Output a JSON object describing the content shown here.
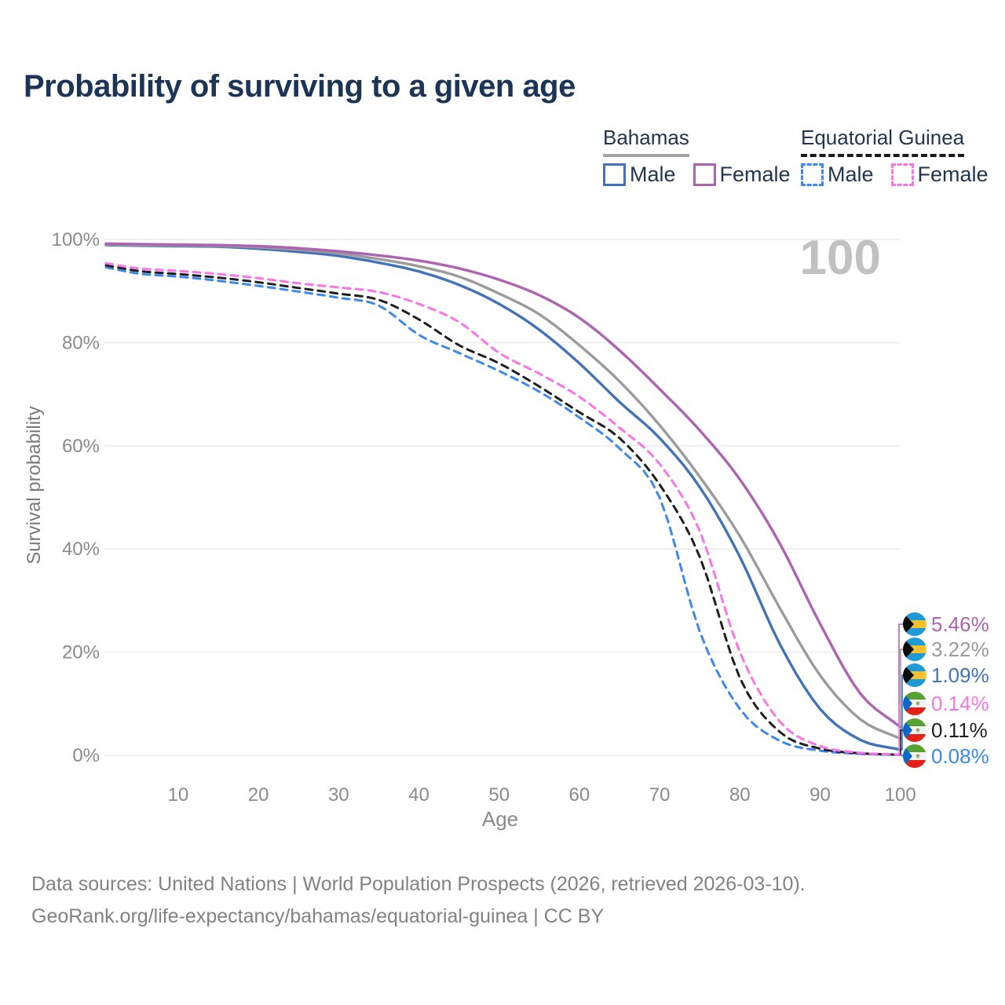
{
  "title": "Probability of surviving to a given age",
  "watermark_age": "100",
  "legend": {
    "bahamas": {
      "title": "Bahamas",
      "male": "Male",
      "female": "Female"
    },
    "equatorial_guinea": {
      "title": "Equatorial Guinea",
      "male": "Male",
      "female": "Female"
    }
  },
  "colors": {
    "title_text": "#1c3557",
    "legend_text": "#22354f",
    "bahamas_female": "#ad64b0",
    "bahamas_both": "#9b9b9b",
    "bahamas_male": "#4273b8",
    "eq_guinea_female": "#fa74e8",
    "eq_guinea_both": "#1f1f1f",
    "eq_guinea_male": "#3d87f0",
    "gridline": "#ececec",
    "tick_text": "#8a8a8a",
    "watermark": "#c1c1c1"
  },
  "footer": {
    "line1": "Data sources: United Nations | World Population Prospects (2026, retrieved 2026-03-10).",
    "line2": "GeoRank.org/life-expectancy/bahamas/equatorial-guinea | CC BY"
  },
  "chart_data": {
    "type": "line",
    "title": "Probability of surviving to a given age",
    "xlabel": "Age",
    "ylabel": "Survival probability",
    "xlim": [
      1,
      100
    ],
    "ylim": [
      0,
      100
    ],
    "grid": "horizontal-only",
    "x_ticks": [
      10,
      20,
      30,
      40,
      50,
      60,
      70,
      80,
      90,
      100
    ],
    "x_tick_labels": [
      "10",
      "20",
      "30",
      "40",
      "50",
      "60",
      "70",
      "80",
      "90",
      "100"
    ],
    "y_ticks": [
      0,
      20,
      40,
      60,
      80,
      100
    ],
    "y_tick_labels": [
      "0%",
      "20%",
      "40%",
      "60%",
      "80%",
      "100%"
    ],
    "x": [
      1,
      5,
      10,
      15,
      20,
      25,
      30,
      35,
      40,
      45,
      50,
      55,
      60,
      65,
      70,
      75,
      80,
      85,
      90,
      95,
      100
    ],
    "series": [
      {
        "name": "Bahamas Male",
        "country": "Bahamas",
        "sex": "Male",
        "style": "solid",
        "color": "#4273b8",
        "values": [
          98.9,
          98.8,
          98.7,
          98.6,
          98.2,
          97.6,
          96.8,
          95.5,
          93.8,
          91.2,
          87.5,
          82.5,
          76.0,
          68.5,
          61.5,
          52.0,
          38.5,
          21.5,
          9.0,
          3.0,
          1.09
        ]
      },
      {
        "name": "Bahamas Both sexes",
        "country": "Bahamas",
        "sex": "Both",
        "style": "solid",
        "color": "#9b9b9b",
        "values": [
          99.0,
          98.9,
          98.85,
          98.75,
          98.5,
          98.0,
          97.3,
          96.2,
          94.8,
          92.8,
          89.5,
          85.5,
          79.5,
          72.5,
          64.0,
          54.0,
          42.5,
          28.5,
          15.5,
          7.0,
          3.22
        ]
      },
      {
        "name": "Bahamas Female",
        "country": "Bahamas",
        "sex": "Female",
        "style": "solid",
        "color": "#ad64b0",
        "values": [
          99.2,
          99.1,
          99.0,
          98.9,
          98.7,
          98.3,
          97.7,
          96.9,
          95.9,
          94.4,
          92.2,
          89.2,
          84.8,
          78.5,
          71.0,
          63.0,
          53.5,
          41.0,
          25.5,
          12.0,
          5.46
        ]
      },
      {
        "name": "Equatorial Guinea Male",
        "country": "Equatorial Guinea",
        "sex": "Male",
        "style": "dashed",
        "color": "#3d87f0",
        "values": [
          94.6,
          93.4,
          92.8,
          92.0,
          91.0,
          89.9,
          88.7,
          87.2,
          81.5,
          78.0,
          74.5,
          70.5,
          65.5,
          59.5,
          50.0,
          24.0,
          9.0,
          2.8,
          0.9,
          0.3,
          0.08
        ]
      },
      {
        "name": "Equatorial Guinea Both sexes",
        "country": "Equatorial Guinea",
        "sex": "Both",
        "style": "dashed",
        "color": "#1f1f1f",
        "values": [
          95.0,
          93.9,
          93.3,
          92.6,
          91.7,
          90.6,
          89.5,
          88.3,
          84.5,
          79.5,
          76.0,
          71.5,
          66.5,
          61.5,
          52.5,
          38.5,
          15.0,
          4.5,
          1.3,
          0.4,
          0.11
        ]
      },
      {
        "name": "Equatorial Guinea Female",
        "country": "Equatorial Guinea",
        "sex": "Female",
        "style": "dashed",
        "color": "#fa74e8",
        "values": [
          95.4,
          94.4,
          93.9,
          93.3,
          92.5,
          91.5,
          90.7,
          89.8,
          87.5,
          84.0,
          78.0,
          74.0,
          69.5,
          63.5,
          56.5,
          43.5,
          20.0,
          6.5,
          1.8,
          0.5,
          0.14
        ]
      }
    ],
    "end_labels": [
      {
        "text": "5.46%",
        "percent": 5.46,
        "flag": "bahamas",
        "color": "#ad64b0"
      },
      {
        "text": "3.22%",
        "percent": 3.22,
        "flag": "bahamas",
        "color": "#9b9b9b"
      },
      {
        "text": "1.09%",
        "percent": 1.09,
        "flag": "bahamas",
        "color": "#4273b8"
      },
      {
        "text": "0.14%",
        "percent": 0.14,
        "flag": "equatorial-guinea",
        "color": "#fa74e8"
      },
      {
        "text": "0.11%",
        "percent": 0.11,
        "flag": "equatorial-guinea",
        "color": "#1f1f1f"
      },
      {
        "text": "0.08%",
        "percent": 0.08,
        "flag": "equatorial-guinea",
        "color": "#3d87f0"
      }
    ],
    "legend_position": "top-right"
  }
}
